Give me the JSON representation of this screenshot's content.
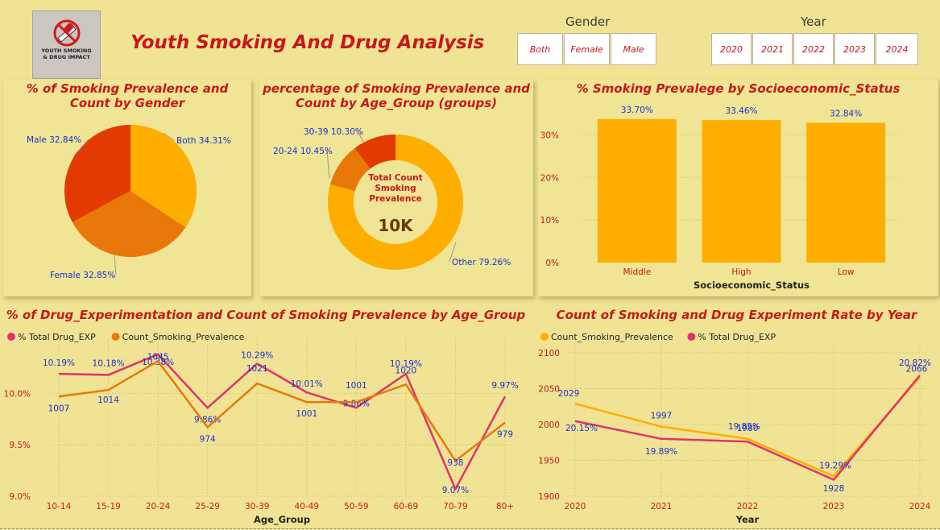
{
  "logo": {
    "icon": "no-smoking-pill-icon",
    "text_line1": "YOUTH SMOKING",
    "text_line2": "& DRUG IMPACT",
    "text_line3": ""
  },
  "header": {
    "title": "Youth Smoking And Drug Analysis"
  },
  "gender_slicer": {
    "title": "Gender",
    "options": [
      "Both",
      "Female",
      "Male"
    ]
  },
  "year_slicer": {
    "title": "Year",
    "options": [
      "2020",
      "2021",
      "2022",
      "2023",
      "2024"
    ]
  },
  "colors": {
    "background": "#f0e494",
    "title_red": "#c8171b",
    "label_blue": "#1c2fd6",
    "orange": "#ffae00",
    "dark_orange": "#e8780a",
    "red_orange": "#e23a00",
    "pink": "#e0336b"
  },
  "chart_data": [
    {
      "type": "pie",
      "title": "% of Smoking Prevalence and Count by Gender",
      "labels": [
        "Both",
        "Female",
        "Male"
      ],
      "values": [
        34.31,
        32.85,
        32.84
      ],
      "data_labels": [
        "Both 34.31%",
        "Female 32.85%",
        "Male 32.84%"
      ],
      "colors": [
        "#ffae00",
        "#e8780a",
        "#e23a00"
      ]
    },
    {
      "type": "pie",
      "variant": "donut",
      "title": "percentage of Smoking Prevalence and Count by Age_Group (groups)",
      "labels": [
        "Other",
        "20-24",
        "30-39"
      ],
      "values": [
        79.26,
        10.45,
        10.3
      ],
      "data_labels": [
        "Other 79.26%",
        "20-24 10.45%",
        "30-39 10.30%"
      ],
      "colors": [
        "#ffae00",
        "#e8780a",
        "#e23a00"
      ],
      "center_label_lines": [
        "Total Count",
        "Smoking",
        "Prevalence"
      ],
      "center_value": "10K"
    },
    {
      "type": "bar",
      "title": "% Smoking Prevalege by Socioeconomic_Status",
      "categories": [
        "Middle",
        "High",
        "Low"
      ],
      "values": [
        33.7,
        33.46,
        32.84
      ],
      "data_labels": [
        "33.70%",
        "33.46%",
        "32.84%"
      ],
      "xlabel": "Socioeconomic_Status",
      "ylabel": "",
      "ylim": [
        0,
        35
      ],
      "yticks": [
        0,
        10,
        20,
        30
      ],
      "ytick_labels": [
        "0%",
        "10%",
        "20%",
        "30%"
      ],
      "color": "#ffae00"
    },
    {
      "type": "line",
      "title": "% of Drug_Experimentation and Count of Smoking Prevalence by Age_Group",
      "categories": [
        "10-14",
        "15-19",
        "20-24",
        "25-29",
        "30-39",
        "40-49",
        "50-59",
        "60-69",
        "70-79",
        "80+"
      ],
      "xlabel": "Age_Group",
      "ylim": [
        9.0,
        10.45
      ],
      "yticks": [
        9.0,
        9.5,
        10.0
      ],
      "ytick_labels": [
        "9.0%",
        "9.5%",
        "10.0%"
      ],
      "series": [
        {
          "name": "% Total Drug_EXP",
          "color": "#e0336b",
          "values": [
            10.19,
            10.18,
            10.38,
            9.86,
            10.29,
            10.01,
            9.86,
            10.19,
            9.07,
            9.97
          ],
          "data_labels": [
            "10.19%",
            "10.18%",
            "10.38%",
            "9.86%",
            "10.29%",
            "10.01%",
            "9.86%",
            "10.19%",
            "9.07%",
            "9.97%"
          ]
        },
        {
          "name": "Count_Smoking_Prevalence",
          "color": "#e8780a",
          "values": [
            1007,
            1014,
            1045,
            974,
            1021,
            1001,
            1001,
            1020,
            938,
            979
          ],
          "data_labels": [
            "1007",
            "1014",
            "1045",
            "974",
            "1021",
            "1001",
            "1001",
            "1020",
            "938",
            "979"
          ]
        }
      ]
    },
    {
      "type": "line",
      "title": "Count of Smoking and Drug Experiment Rate by Year",
      "categories": [
        "2020",
        "2021",
        "2022",
        "2023",
        "2024"
      ],
      "xlabel": "Year",
      "ylim": [
        1900,
        2100
      ],
      "yticks": [
        1900,
        1950,
        2000,
        2050,
        2100
      ],
      "ytick_labels": [
        "1900",
        "1950",
        "2000",
        "2050",
        "2100"
      ],
      "series": [
        {
          "name": "Count_Smoking_Prevalence",
          "color": "#ffae00",
          "values": [
            2029,
            1997,
            1980,
            1928,
            2066
          ],
          "data_labels": [
            "2029",
            "1997",
            "1980",
            "1928",
            "2066"
          ]
        },
        {
          "name": "% Total Drug_EXP",
          "color": "#e0336b",
          "values": [
            20.15,
            19.89,
            19.85,
            19.29,
            20.82
          ],
          "data_labels": [
            "20.15%",
            "19.89%",
            "19.85%",
            "19.29%",
            "20.82%"
          ]
        }
      ]
    }
  ]
}
